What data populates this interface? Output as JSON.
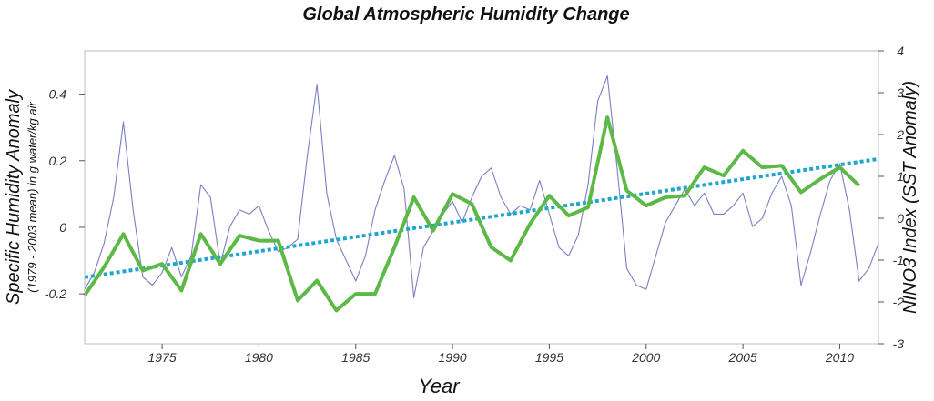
{
  "chart_data": {
    "type": "line",
    "title": "Global Atmospheric Humidity Change",
    "xlabel": "Year",
    "ylabel_left_main": "Specific Humidity Anomaly",
    "ylabel_left_sub": "(1979 - 2003 mean) in g water/kg air",
    "ylabel_right": "NINO3 Index (SST Anomaly)",
    "xlim": [
      1971,
      2012
    ],
    "ylim_left": [
      -0.35,
      0.53
    ],
    "ylim_right": [
      -3,
      4
    ],
    "x_ticks": [
      "1975",
      "1980",
      "1985",
      "1990",
      "1995",
      "2000",
      "2005",
      "2010"
    ],
    "y_left_ticks": [
      "-0.2",
      "0",
      "0.2",
      "0.4"
    ],
    "y_right_ticks": [
      "-3",
      "-2",
      "-1",
      "0",
      "1",
      "2",
      "3",
      "4"
    ],
    "series": [
      {
        "axis": "left",
        "style": "solid-thick",
        "color": "#5cb946",
        "x": [
          1971,
          1972,
          1973,
          1974,
          1975,
          1976,
          1977,
          1978,
          1979,
          1980,
          1981,
          1982,
          1983,
          1984,
          1985,
          1986,
          1987,
          1988,
          1989,
          1990,
          1991,
          1992,
          1993,
          1994,
          1995,
          1996,
          1997,
          1998,
          1999,
          2000,
          2001,
          2002,
          2003,
          2004,
          2005,
          2006,
          2007,
          2008,
          2009,
          2010,
          2011
        ],
        "values": [
          -0.205,
          -0.12,
          -0.02,
          -0.13,
          -0.11,
          -0.19,
          -0.02,
          -0.11,
          -0.025,
          -0.04,
          -0.04,
          -0.22,
          -0.16,
          -0.25,
          -0.2,
          -0.2,
          -0.06,
          0.09,
          -0.01,
          0.1,
          0.07,
          -0.06,
          -0.1,
          0.01,
          0.095,
          0.035,
          0.06,
          0.33,
          0.11,
          0.065,
          0.09,
          0.095,
          0.18,
          0.155,
          0.23,
          0.18,
          0.185,
          0.105,
          0.145,
          0.18,
          0.125
        ]
      },
      {
        "axis": "left",
        "style": "dotted-thick",
        "color": "#1fa6cf",
        "x": [
          1971,
          2012
        ],
        "values": [
          -0.15,
          0.205
        ]
      },
      {
        "axis": "right",
        "style": "thin",
        "color": "#7b7fc4",
        "x": [
          1971,
          1971.5,
          1972,
          1972.5,
          1973,
          1973.5,
          1974,
          1974.5,
          1975,
          1975.5,
          1976,
          1976.5,
          1977,
          1977.5,
          1978,
          1978.5,
          1979,
          1979.5,
          1980,
          1980.5,
          1981,
          1981.5,
          1982,
          1982.5,
          1983,
          1983.5,
          1984,
          1984.5,
          1985,
          1985.5,
          1986,
          1986.5,
          1987,
          1987.5,
          1988,
          1988.5,
          1989,
          1989.5,
          1990,
          1990.5,
          1991,
          1991.5,
          1992,
          1992.5,
          1993,
          1993.5,
          1994,
          1994.5,
          1995,
          1995.5,
          1996,
          1996.5,
          1997,
          1997.5,
          1998,
          1998.5,
          1999,
          1999.5,
          2000,
          2000.5,
          2001,
          2001.5,
          2002,
          2002.5,
          2003,
          2003.5,
          2004,
          2004.5,
          2005,
          2005.5,
          2006,
          2006.5,
          2007,
          2007.5,
          2008,
          2008.5,
          2009,
          2009.5,
          2010,
          2010.5,
          2011,
          2011.5,
          2012
        ],
        "values": [
          -1.7,
          -1.3,
          -0.6,
          0.5,
          2.3,
          0.2,
          -1.4,
          -1.6,
          -1.3,
          -0.7,
          -1.4,
          -0.9,
          0.8,
          0.5,
          -1.1,
          -0.2,
          0.2,
          0.1,
          0.3,
          -0.3,
          -0.8,
          -0.7,
          -0.5,
          1.5,
          3.2,
          0.6,
          -0.5,
          -1.0,
          -1.5,
          -0.9,
          0.2,
          0.9,
          1.5,
          0.7,
          -1.9,
          -0.7,
          -0.3,
          0.1,
          0.4,
          -0.1,
          0.5,
          1.0,
          1.2,
          0.5,
          0.1,
          0.3,
          0.2,
          0.9,
          0.1,
          -0.7,
          -0.9,
          -0.4,
          0.8,
          2.8,
          3.4,
          1.2,
          -1.2,
          -1.6,
          -1.7,
          -0.9,
          -0.1,
          0.3,
          0.7,
          0.3,
          0.6,
          0.1,
          0.1,
          0.3,
          0.6,
          -0.2,
          0.0,
          0.6,
          1.0,
          0.3,
          -1.6,
          -0.8,
          0.1,
          0.9,
          1.3,
          0.2,
          -1.5,
          -1.2,
          -0.6
        ]
      }
    ]
  }
}
